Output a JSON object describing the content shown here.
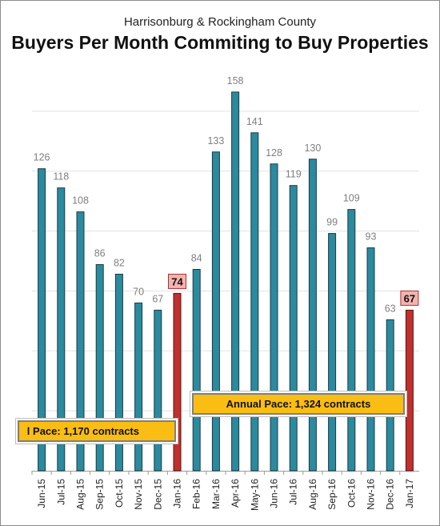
{
  "chart_data": {
    "type": "bar",
    "subtitle": "Harrisonburg & Rockingham County",
    "title": "Buyers Per Month Commiting to Buy Properties",
    "xlabel": "",
    "ylabel": "",
    "ylim": [
      0,
      170
    ],
    "grid": true,
    "categories": [
      "Jun-15",
      "Jul-15",
      "Aug-15",
      "Sep-15",
      "Oct-15",
      "Nov-15",
      "Dec-15",
      "Jan-16",
      "Feb-16",
      "Mar-16",
      "Apr-16",
      "May-16",
      "Jun-16",
      "Jul-16",
      "Aug-16",
      "Sep-16",
      "Oct-16",
      "Nov-16",
      "Dec-16",
      "Jan-17"
    ],
    "values": [
      126,
      118,
      108,
      86,
      82,
      70,
      67,
      74,
      84,
      133,
      158,
      141,
      128,
      119,
      130,
      99,
      109,
      93,
      63,
      67
    ],
    "highlight_indices": [
      7,
      19
    ],
    "colors": {
      "bar": "#2b8a9e",
      "bar_edge": "#1a3a44",
      "highlight": "#c0302e",
      "label": "#7f7f7f",
      "highlight_label_bg": "#f2b3b1",
      "pace_bg": "#f9bd13"
    },
    "annotations": [
      {
        "text": "l Pace: 1,170 contracts"
      },
      {
        "text": "Annual Pace: 1,324 contracts"
      }
    ]
  }
}
